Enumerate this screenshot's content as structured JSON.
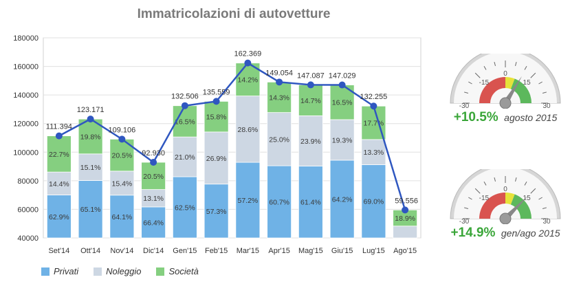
{
  "chart_data": {
    "type": "bar",
    "title": "Immatricolazioni di autovetture",
    "categories": [
      "Set'14",
      "Ott'14",
      "Nov'14",
      "Dic'14",
      "Gen'15",
      "Feb'15",
      "Mar'15",
      "Apr'15",
      "Mag'15",
      "Giu'15",
      "Lug'15",
      "Ago'15"
    ],
    "ylim": [
      40000,
      180000
    ],
    "yticks": [
      "40000",
      "60000",
      "80000",
      "100000",
      "120000",
      "140000",
      "160000",
      "180000"
    ],
    "grid": true,
    "stacked": true,
    "totals": [
      111394,
      123171,
      109106,
      92930,
      132506,
      135559,
      162369,
      149054,
      147087,
      147029,
      132255,
      59556
    ],
    "total_labels": [
      "111.394",
      "123.171",
      "109.106",
      "92.930",
      "132.506",
      "135.559",
      "162.369",
      "149.054",
      "147.087",
      "147.029",
      "132.255",
      "59.556"
    ],
    "series": [
      {
        "name": "Privati",
        "color": "#6fb2e6",
        "shares": [
          62.9,
          65.1,
          64.1,
          66.4,
          62.5,
          57.3,
          57.2,
          60.7,
          61.4,
          64.2,
          69.0,
          null
        ],
        "labels": [
          "62.9%",
          "65.1%",
          "64.1%",
          "66.4%",
          "62.5%",
          "57.3%",
          "57.2%",
          "60.7%",
          "61.4%",
          "64.2%",
          "69.0%",
          ""
        ]
      },
      {
        "name": "Noleggio",
        "color": "#cdd7e3",
        "shares": [
          14.4,
          15.1,
          15.4,
          13.1,
          21.0,
          26.9,
          28.6,
          25.0,
          23.9,
          19.3,
          13.3,
          null
        ],
        "labels": [
          "14.4%",
          "15.1%",
          "15.4%",
          "13.1%",
          "21.0%",
          "26.9%",
          "28.6%",
          "25.0%",
          "23.9%",
          "19.3%",
          "13.3%",
          ""
        ]
      },
      {
        "name": "Società",
        "color": "#85cf80",
        "shares": [
          22.7,
          19.8,
          20.5,
          20.5,
          16.5,
          15.8,
          14.2,
          14.3,
          14.7,
          16.5,
          17.7,
          18.9
        ],
        "labels": [
          "22.7%",
          "19.8%",
          "20.5%",
          "20.5%",
          "16.5%",
          "15.8%",
          "14.2%",
          "14.3%",
          "14.7%",
          "16.5%",
          "17.7%",
          "18.9%"
        ]
      }
    ],
    "line": {
      "color": "#2f57c0"
    },
    "legend_position": "bottom-left"
  },
  "gauges": [
    {
      "value": 10.5,
      "value_label": "+10.5%",
      "period": "agosto 2015",
      "ticks": [
        "-30",
        "-15",
        "0",
        "15",
        "30"
      ],
      "min": -30,
      "max": 30
    },
    {
      "value": 14.9,
      "value_label": "+14.9%",
      "period": "gen/ago 2015",
      "ticks": [
        "-30",
        "-15",
        "0",
        "15",
        "30"
      ],
      "min": -30,
      "max": 30
    }
  ]
}
